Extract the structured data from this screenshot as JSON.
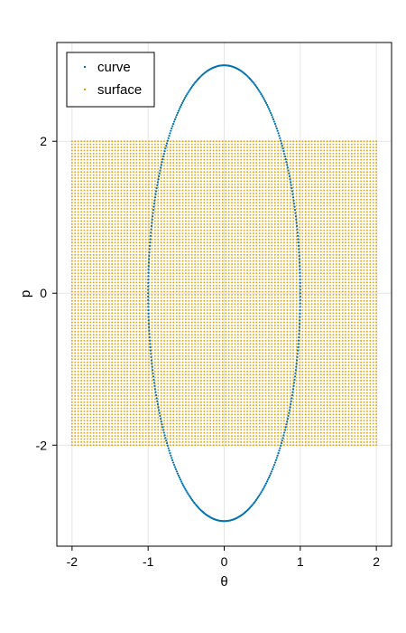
{
  "chart_data": {
    "type": "scatter",
    "title": "",
    "xlabel": "θ",
    "ylabel": "p",
    "xlim": [
      -2.2,
      2.2
    ],
    "ylim": [
      -3.33,
      3.3
    ],
    "x_ticks": [
      -2,
      -1,
      0,
      1,
      2
    ],
    "y_ticks": [
      -2,
      0,
      2
    ],
    "x_tick_labels": [
      "-2",
      "-1",
      "0",
      "1",
      "2"
    ],
    "y_tick_labels": [
      "-2",
      "0",
      "2"
    ],
    "grid": true,
    "legend_position": "top-left",
    "series": [
      {
        "name": "curve",
        "color": "#0072b2",
        "shape": "ellipse",
        "center": [
          0,
          0
        ],
        "semi_axis_theta": 1.0,
        "semi_axis_p": 3.0,
        "n_points": 420
      },
      {
        "name": "surface",
        "color": "#e69f00",
        "shape": "filled-rectangle",
        "theta_range": [
          -2,
          2
        ],
        "p_range": [
          -2,
          2
        ],
        "grid_size": [
          100,
          100
        ]
      }
    ]
  }
}
